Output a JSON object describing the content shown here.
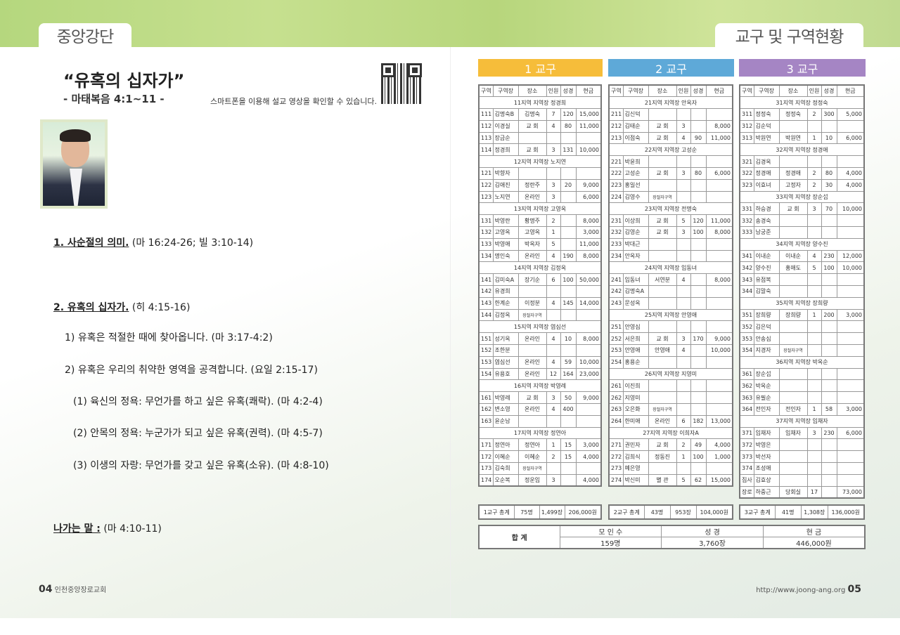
{
  "header": {
    "left_tab": "중앙강단",
    "right_tab": "교구 및 구역현황"
  },
  "sermon": {
    "title": "“유혹의 십자가”",
    "scripture": "- 마태복음 4:1~11 -",
    "qr_note": "스마트폰을 이용해 설교 영상을 확인할 수 있습니다.",
    "sections": [
      {
        "heading": "1. 사순절의 의미.",
        "ref": " (마 16:24-26; 빌 3:10-14)"
      },
      {
        "heading": "2. 유혹의 십자가.",
        "ref": " (히 4:15-16)"
      }
    ],
    "points": [
      "1) 유혹은 적절한 때에 찾아옵니다. (마 3:17-4:2)",
      "2) 유혹은 우리의 취약한 영역을 공격합니다. (요일 2:15-17)",
      "(1) 육신의 정욕: 무언가를 하고 싶은 유혹(쾌락). (마 4:2-4)",
      "(2) 안목의 정욕: 누군가가 되고 싶은 유혹(권력). (마 4:5-7)",
      "(3) 이생의 자랑: 무언가를 갖고 싶은 유혹(소유). (마 4:8-10)"
    ],
    "closing": {
      "heading": "나가는 말 :",
      "ref": " (마 4:10-11)"
    }
  },
  "footer": {
    "left_page": "04",
    "left_text": "인천중앙장로교회",
    "right_text": "http://www.joong-ang.org",
    "right_page": "05"
  },
  "columns": [
    "구역",
    "구역장",
    "장소",
    "인원",
    "성경",
    "현금"
  ],
  "districts": [
    {
      "name": "1 교구",
      "color": "#f6bd3a",
      "regions": [
        {
          "title": "11지역 지역장 정경희",
          "rows": [
            [
              "111",
              "김명숙B",
              "김명숙",
              "7",
              "120",
              "15,000"
            ],
            [
              "112",
              "이경실",
              "교 회",
              "4",
              "80",
              "11,000"
            ],
            [
              "113",
              "장금순",
              "",
              "",
              "",
              ""
            ],
            [
              "114",
              "정경희",
              "교 회",
              "3",
              "131",
              "10,000"
            ]
          ]
        },
        {
          "title": "12지역 지역장 노지연",
          "rows": [
            [
              "121",
              "박향자",
              "",
              "",
              "",
              ""
            ],
            [
              "122",
              "김애진",
              "정란주",
              "3",
              "20",
              "9,000"
            ],
            [
              "123",
              "노지연",
              "온라인",
              "3",
              "",
              "6,000"
            ]
          ]
        },
        {
          "title": "13지역 지역장 고영옥",
          "rows": [
            [
              "131",
              "박영란",
              "황명주",
              "2",
              "",
              "8,000"
            ],
            [
              "132",
              "고영옥",
              "고영옥",
              "1",
              "",
              "3,000"
            ],
            [
              "133",
              "박영애",
              "박옥자",
              "5",
              "",
              "11,000"
            ],
            [
              "134",
              "명인숙",
              "온라인",
              "4",
              "190",
              "8,000"
            ]
          ]
        },
        {
          "title": "14지역 지역장 김정옥",
          "rows": [
            [
              "141",
              "김미숙A",
              "장기순",
              "6",
              "100",
              "50,000"
            ],
            [
              "142",
              "유경희",
              "",
              "",
              "",
              ""
            ],
            [
              "143",
              "한계순",
              "이정분",
              "4",
              "145",
              "14,000"
            ],
            [
              "144",
              "김정옥",
              "장절자구역",
              "",
              "",
              ""
            ]
          ]
        },
        {
          "title": "15지역 지역장 염심선",
          "rows": [
            [
              "151",
              "성기옥",
              "온라인",
              "4",
              "10",
              "8,000"
            ],
            [
              "152",
              "조한분",
              "",
              "",
              "",
              ""
            ],
            [
              "153",
              "염심선",
              "온라인",
              "4",
              "59",
              "10,000"
            ],
            [
              "154",
              "유용호",
              "온라인",
              "12",
              "164",
              "23,000"
            ]
          ]
        },
        {
          "title": "16지역 지역장 박영례",
          "rows": [
            [
              "161",
              "박영례",
              "교 회",
              "3",
              "50",
              "9,000"
            ],
            [
              "162",
              "변소영",
              "온라인",
              "4",
              "400",
              ""
            ],
            [
              "163",
              "윤순남",
              "",
              "",
              "",
              ""
            ]
          ]
        },
        {
          "title": "17지역 지역장 정연아",
          "rows": [
            [
              "171",
              "정연아",
              "정연아",
              "1",
              "15",
              "3,000"
            ],
            [
              "172",
              "이혜순",
              "이혜순",
              "2",
              "15",
              "4,000"
            ],
            [
              "173",
              "김숙희",
              "장절자구역",
              "",
              "",
              ""
            ],
            [
              "174",
              "오순복",
              "정운임",
              "3",
              "",
              "4,000"
            ]
          ]
        }
      ],
      "total": {
        "label": "1교구 총계",
        "people": "75명",
        "bibles": "1,499장",
        "cash": "206,000원"
      }
    },
    {
      "name": "2 교구",
      "color": "#5ea9d8",
      "regions": [
        {
          "title": "21지역 지역장 안옥자",
          "rows": [
            [
              "211",
              "김신덕",
              "",
              "",
              "",
              ""
            ],
            [
              "212",
              "김태순",
              "교 회",
              "3",
              "",
              "8,000"
            ],
            [
              "213",
              "이점숙",
              "교 회",
              "4",
              "90",
              "11,000"
            ]
          ]
        },
        {
          "title": "22지역 지역장 고성순",
          "rows": [
            [
              "221",
              "박윤희",
              "",
              "",
              "",
              ""
            ],
            [
              "222",
              "고성순",
              "교 회",
              "3",
              "80",
              "6,000"
            ],
            [
              "223",
              "홍일선",
              "",
              "",
              "",
              ""
            ],
            [
              "224",
              "김영수",
              "장절자구역",
              "",
              "",
              ""
            ]
          ]
        },
        {
          "title": "23지역 지역장 전명숙",
          "rows": [
            [
              "231",
              "이상희",
              "교 회",
              "5",
              "120",
              "11,000"
            ],
            [
              "232",
              "김영순",
              "교 회",
              "3",
              "100",
              "8,000"
            ],
            [
              "233",
              "박대근",
              "",
              "",
              "",
              ""
            ],
            [
              "234",
              "안옥자",
              "",
              "",
              "",
              ""
            ]
          ]
        },
        {
          "title": "24지역 지역장 임동녀",
          "rows": [
            [
              "241",
              "임동녀",
              "서연분",
              "4",
              "",
              "8,000"
            ],
            [
              "242",
              "김명숙A",
              "",
              "",
              "",
              ""
            ],
            [
              "243",
              "문성옥",
              "",
              "",
              "",
              ""
            ]
          ]
        },
        {
          "title": "25지역 지역장 안영애",
          "rows": [
            [
              "251",
              "안영심",
              "",
              "",
              "",
              ""
            ],
            [
              "252",
              "서은희",
              "교 회",
              "3",
              "170",
              "9,000"
            ],
            [
              "253",
              "안영애",
              "안영애",
              "4",
              "",
              "10,000"
            ],
            [
              "254",
              "홍용순",
              "",
              "",
              "",
              ""
            ]
          ]
        },
        {
          "title": "26지역 지역장 지영미",
          "rows": [
            [
              "261",
              "이진희",
              "",
              "",
              "",
              ""
            ],
            [
              "262",
              "지영미",
              "",
              "",
              "",
              ""
            ],
            [
              "263",
              "오은화",
              "장절자구역",
              "",
              "",
              ""
            ],
            [
              "264",
              "한미애",
              "온라인",
              "6",
              "182",
              "13,000"
            ]
          ]
        },
        {
          "title": "27지역 지역장 이희자A",
          "rows": [
            [
              "271",
              "권민자",
              "교 회",
              "2",
              "49",
              "4,000"
            ],
            [
              "272",
              "김희식",
              "정동진",
              "1",
              "100",
              "1,000"
            ],
            [
              "273",
              "예은영",
              "",
              "",
              "",
              ""
            ],
            [
              "274",
              "박신미",
              "별 관",
              "5",
              "62",
              "15,000"
            ]
          ]
        }
      ],
      "total": {
        "label": "2교구 총계",
        "people": "43명",
        "bibles": "953장",
        "cash": "104,000원"
      }
    },
    {
      "name": "3 교구",
      "color": "#a585c4",
      "regions": [
        {
          "title": "31지역 지역장 정정숙",
          "rows": [
            [
              "311",
              "정정숙",
              "정정숙",
              "2",
              "300",
              "5,000"
            ],
            [
              "312",
              "김순덕",
              "",
              "",
              "",
              ""
            ],
            [
              "313",
              "박원연",
              "박원연",
              "1",
              "10",
              "6,000"
            ]
          ]
        },
        {
          "title": "32지역 지역장 정경애",
          "rows": [
            [
              "321",
              "김경옥",
              "",
              "",
              "",
              ""
            ],
            [
              "322",
              "정경애",
              "정경애",
              "2",
              "80",
              "4,000"
            ],
            [
              "323",
              "이효녀",
              "고정자",
              "2",
              "30",
              "4,000"
            ]
          ]
        },
        {
          "title": "33지역 지역장 장순섭",
          "rows": [
            [
              "331",
              "하승경",
              "교 회",
              "3",
              "70",
              "10,000"
            ],
            [
              "332",
              "송경숙",
              "",
              "",
              "",
              ""
            ],
            [
              "333",
              "남궁준",
              "",
              "",
              "",
              ""
            ]
          ]
        },
        {
          "title": "34지역 지역장 양수진",
          "rows": [
            [
              "341",
              "이내순",
              "이내순",
              "4",
              "230",
              "12,000"
            ],
            [
              "342",
              "양수진",
              "홍애도",
              "5",
              "100",
              "10,000"
            ],
            [
              "343",
              "유점복",
              "",
              "",
              "",
              ""
            ],
            [
              "344",
              "김말숙",
              "",
              "",
              "",
              ""
            ]
          ]
        },
        {
          "title": "35지역 지역장 장희량",
          "rows": [
            [
              "351",
              "장희량",
              "장희량",
              "1",
              "200",
              "3,000"
            ],
            [
              "352",
              "김은덕",
              "",
              "",
              "",
              ""
            ],
            [
              "353",
              "안송심",
              "",
              "",
              "",
              ""
            ],
            [
              "354",
              "지경자",
              "장절자구역",
              "",
              "",
              ""
            ]
          ]
        },
        {
          "title": "36지역 지역장 박옥순",
          "rows": [
            [
              "361",
              "장순섭",
              "",
              "",
              "",
              ""
            ],
            [
              "362",
              "박옥순",
              "",
              "",
              "",
              ""
            ],
            [
              "363",
              "유필순",
              "",
              "",
              "",
              ""
            ],
            [
              "364",
              "전인자",
              "전인자",
              "1",
              "58",
              "3,000"
            ]
          ]
        },
        {
          "title": "37지역 지역장 임채자",
          "rows": [
            [
              "371",
              "임채자",
              "임채자",
              "3",
              "230",
              "6,000"
            ],
            [
              "372",
              "박영은",
              "",
              "",
              "",
              ""
            ],
            [
              "373",
              "박선자",
              "",
              "",
              "",
              ""
            ],
            [
              "374",
              "조성애",
              "",
              "",
              "",
              ""
            ]
          ]
        },
        {
          "title": "",
          "rows": [
            [
              "집사",
              "김효상",
              "",
              "",
              "",
              ""
            ],
            [
              "장로",
              "하중근",
              "당회실",
              "17",
              "",
              "73,000"
            ]
          ]
        }
      ],
      "total": {
        "label": "3교구 총계",
        "people": "41명",
        "bibles": "1,308장",
        "cash": "136,000원"
      }
    }
  ],
  "grand_total": {
    "label": "합 계",
    "headers": [
      "모 인 수",
      "성 경",
      "현 금"
    ],
    "values": [
      "159명",
      "3,760장",
      "446,000원"
    ]
  }
}
